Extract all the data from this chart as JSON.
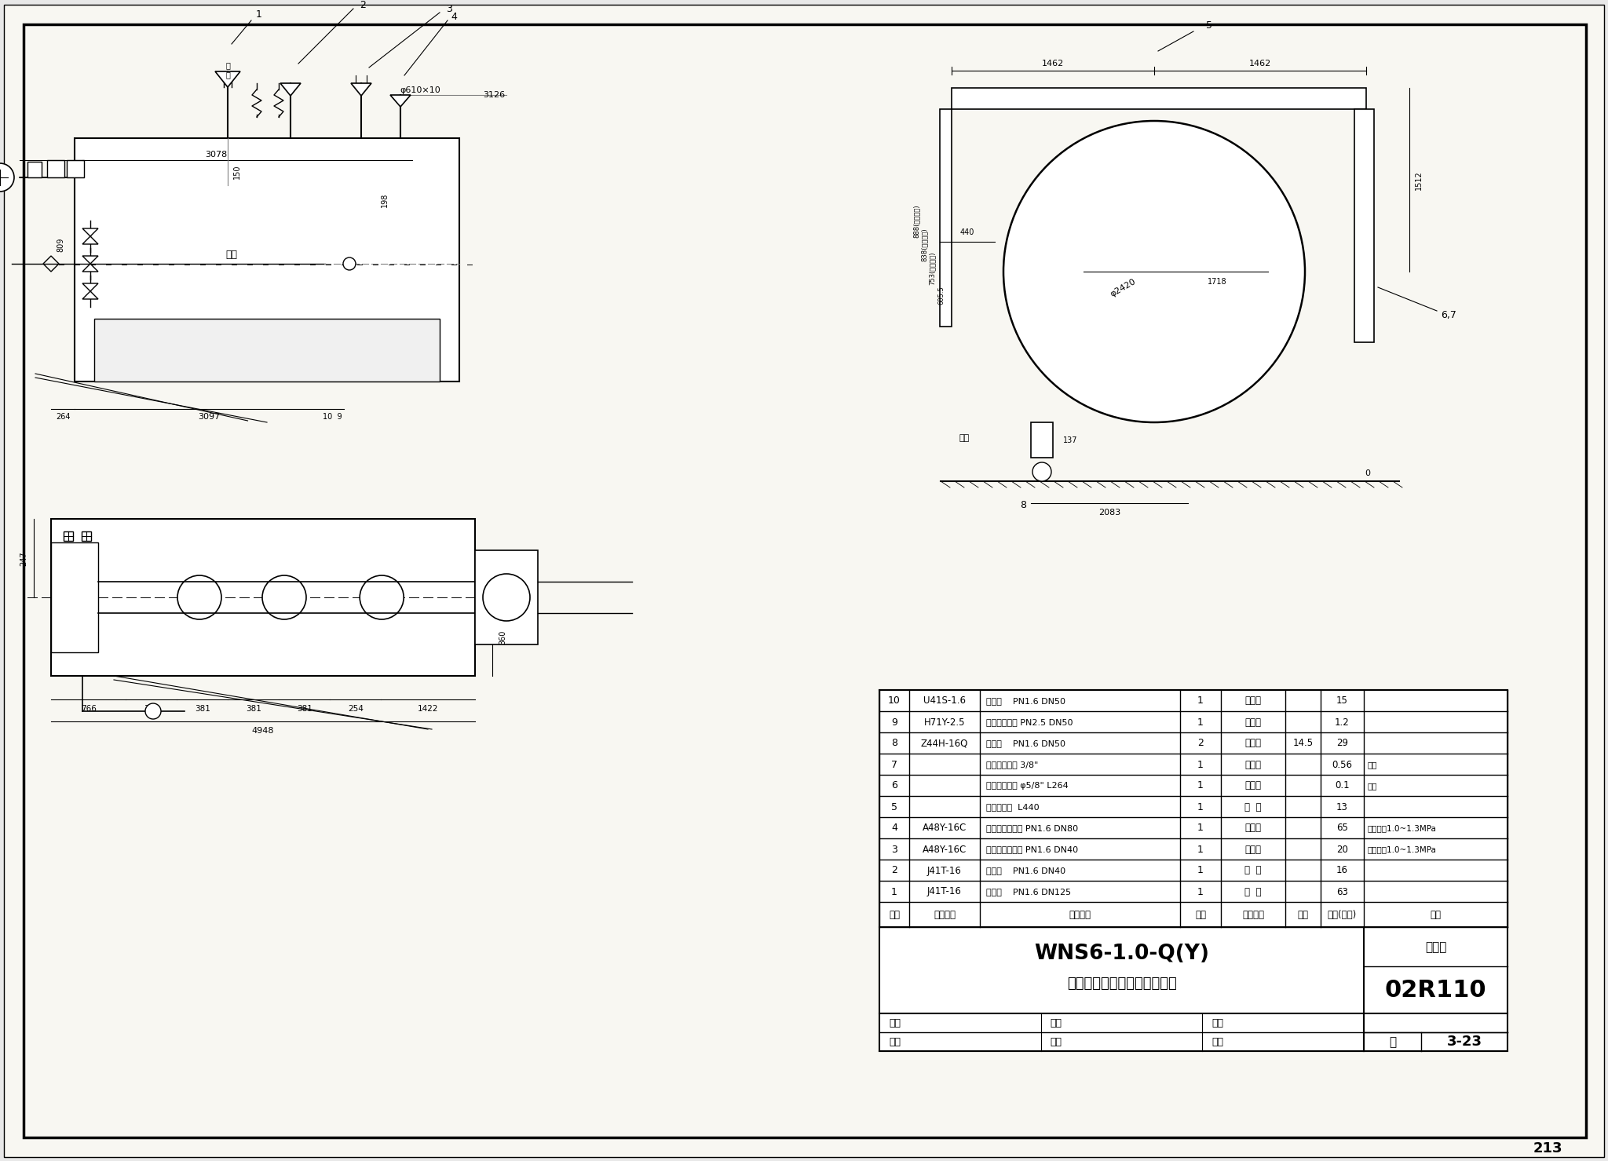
{
  "bg_color": "#e8e8e8",
  "page_color": "#f8f7f2",
  "page_number": "213",
  "title_main": "WNS6-1.0-Q(Y)",
  "title_sub": "蒸汽锅炉管道、阀门、仪表图",
  "atlas_label": "图集号",
  "atlas_number": "02R110",
  "page_label": "页",
  "page_ref": "3-23",
  "table_rows": [
    [
      "10",
      "U41S-1.6",
      "柱塞阀    PN1.6 DN50",
      "1",
      "外购件",
      "",
      "15",
      ""
    ],
    [
      "9",
      "H71Y-2.5",
      "对夹式止回阀 PN2.5 DN50",
      "1",
      "外购件",
      "",
      "1.2",
      ""
    ],
    [
      "8",
      "Z44H-16Q",
      "排污阀    PN1.6 DN50",
      "2",
      "外购件",
      "14.5",
      "29",
      ""
    ],
    [
      "7",
      "",
      "水位表排液阀 3/8\"",
      "1",
      "外购件",
      "",
      "0.56",
      "进口"
    ],
    [
      "6",
      "",
      "水位表玻璃管 φ5/8\" L264",
      "1",
      "外购件",
      "",
      "0.1",
      "进口"
    ],
    [
      "5",
      "",
      "双色水位计  L440",
      "1",
      "组  件",
      "",
      "13",
      ""
    ],
    [
      "4",
      "A48Y-16C",
      "弹簧全启安全阀 PN1.6 DN80",
      "1",
      "外购件",
      "",
      "65",
      "整定压力1.0~1.3MPa"
    ],
    [
      "3",
      "A48Y-16C",
      "弹簧全启安全阀 PN1.6 DN40",
      "1",
      "外购件",
      "",
      "20",
      "整定压力1.0~1.3MPa"
    ],
    [
      "2",
      "J41T-16",
      "截止阀    PN1.6 DN40",
      "1",
      "组  件",
      "",
      "16",
      ""
    ],
    [
      "1",
      "J41T-16",
      "截止阀    PN1.6 DN125",
      "1",
      "组  件",
      "",
      "63",
      ""
    ]
  ],
  "header_row": [
    "序号",
    "代　　号",
    "名　　称",
    "数量",
    "材　　料",
    "单重",
    "总重(公斤)",
    "行注"
  ],
  "audit_line": "审核",
  "check_line": "校对",
  "design_line": "设计"
}
